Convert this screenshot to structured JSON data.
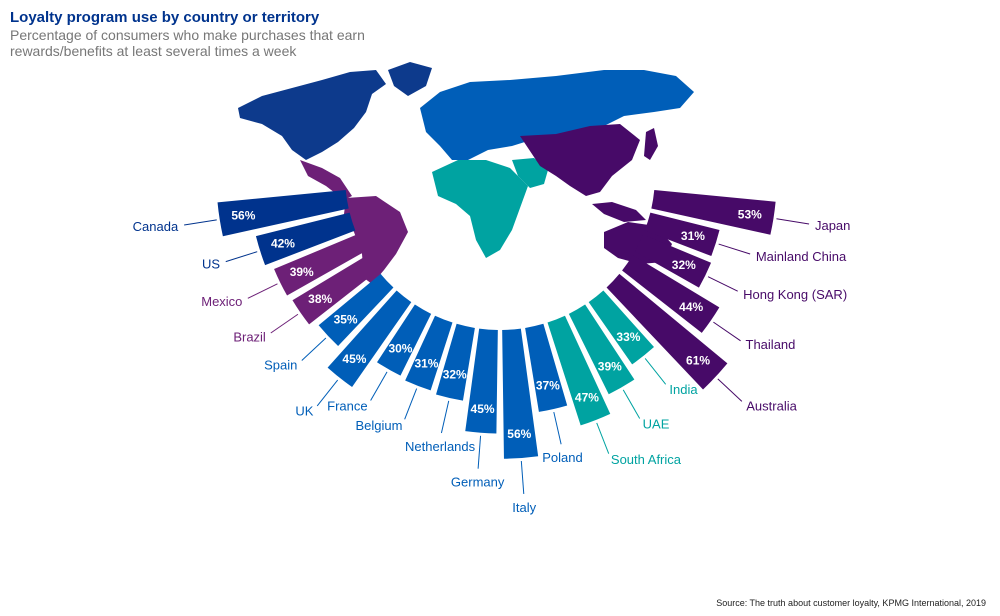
{
  "title": "Loyalty program use by country or territory",
  "subtitle": "Percentage of consumers who make purchases that earn rewards/benefits at least several times a week",
  "source": "Source: The truth about customer loyalty, KPMG International, 2019",
  "colors": {
    "americas_north": "#00338d",
    "americas_latin": "#6d2077",
    "europe": "#005eb8",
    "middle_east_africa": "#00a3a1",
    "asia_pacific": "#470a68"
  },
  "chart_data": {
    "type": "bar",
    "categories": [
      "Canada",
      "US",
      "Mexico",
      "Brazil",
      "Spain",
      "UK",
      "France",
      "Belgium",
      "Netherlands",
      "Germany",
      "Italy",
      "Poland",
      "South Africa",
      "UAE",
      "India",
      "Australia",
      "Thailand",
      "Hong Kong (SAR)",
      "Mainland China",
      "Japan"
    ],
    "values": [
      56,
      42,
      39,
      38,
      35,
      45,
      30,
      31,
      32,
      45,
      56,
      37,
      47,
      39,
      33,
      61,
      44,
      32,
      31,
      53
    ],
    "labels": [
      "56%",
      "42%",
      "39%",
      "38%",
      "35%",
      "45%",
      "30%",
      "31%",
      "32%",
      "45%",
      "56%",
      "37%",
      "47%",
      "39%",
      "33%",
      "61%",
      "44%",
      "32%",
      "31%",
      "53%"
    ],
    "regions": [
      "americas_north",
      "americas_north",
      "americas_latin",
      "americas_latin",
      "europe",
      "europe",
      "europe",
      "europe",
      "europe",
      "europe",
      "europe",
      "europe",
      "middle_east_africa",
      "middle_east_africa",
      "middle_east_africa",
      "asia_pacific",
      "asia_pacific",
      "asia_pacific",
      "asia_pacific",
      "asia_pacific"
    ],
    "units": "%"
  }
}
